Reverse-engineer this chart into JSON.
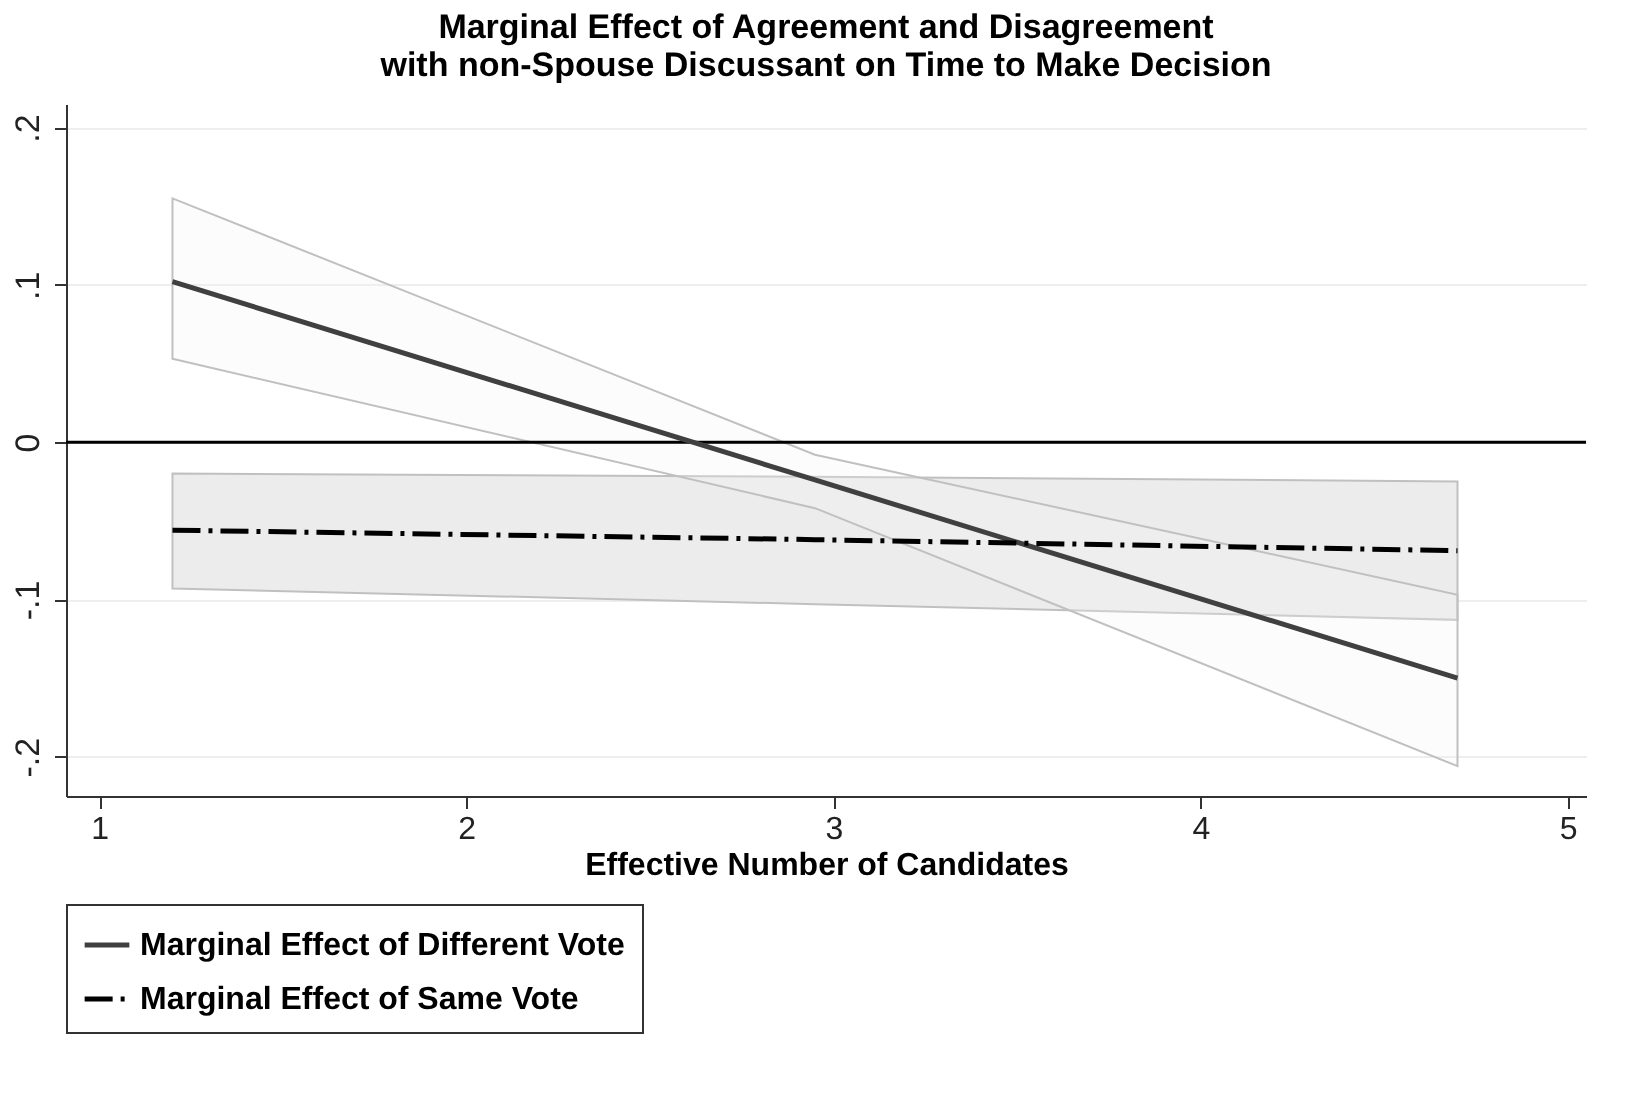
{
  "chart_data": {
    "type": "line",
    "title": [
      "Marginal Effect of Agreement and Disagreement",
      "with non-Spouse Discussant on Time to Make Decision"
    ],
    "xlabel": "Effective Number of Candidates",
    "x": [
      1.2,
      2.95,
      4.7
    ],
    "series": [
      {
        "name": "Marginal Effect of Different Vote",
        "color": "#404040",
        "line_style": "solid",
        "values": [
          0.102,
          -0.024,
          -0.15
        ],
        "lower": [
          0.053,
          -0.042,
          -0.206
        ],
        "upper": [
          0.155,
          -0.008,
          -0.097
        ]
      },
      {
        "name": "Marginal Effect of Same Vote",
        "color": "#000000",
        "line_style": "dashed",
        "values": [
          -0.056,
          -0.062,
          -0.069
        ],
        "lower": [
          -0.093,
          -0.103,
          -0.113
        ],
        "upper": [
          -0.02,
          -0.022,
          -0.025
        ]
      }
    ],
    "xlim": [
      0.91,
      5.05
    ],
    "xticks": [
      1,
      2,
      3,
      4,
      5
    ],
    "ylim": [
      -0.225,
      0.215
    ],
    "yticks": [
      {
        "value": -0.2,
        "label": "-.2"
      },
      {
        "value": -0.1,
        "label": "-.1"
      },
      0,
      {
        "value": 0.1,
        "label": ".1"
      },
      {
        "value": 0.2,
        "label": ".2"
      }
    ],
    "ref_lines": [
      {
        "axis": "y",
        "value": 0,
        "color": "#000000"
      }
    ],
    "grid": "y",
    "legend": "bottom",
    "marker": "none"
  }
}
